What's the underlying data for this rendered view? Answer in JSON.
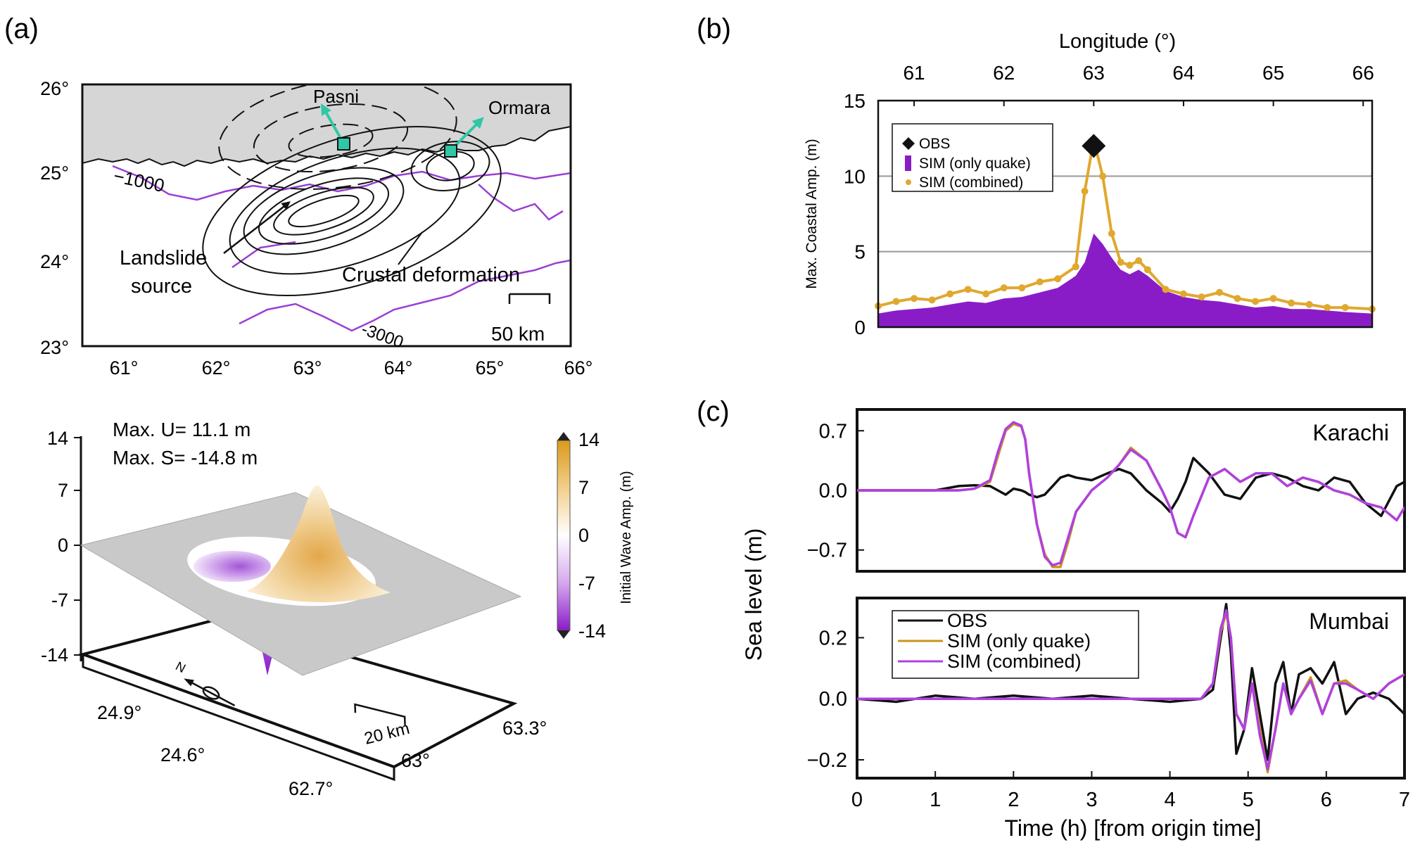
{
  "panels": {
    "a_label": "(a)",
    "b_label": "(b)",
    "c_label": "(c)"
  },
  "map_panel": {
    "lat_ticks": [
      "26°",
      "25°",
      "24°",
      "23°"
    ],
    "lon_ticks": [
      "61°",
      "62°",
      "63°",
      "64°",
      "65°",
      "66°"
    ],
    "places": [
      "Pasni",
      "Ormara"
    ],
    "contour_labels": [
      "1000",
      "-3000"
    ],
    "annotations": [
      "Landslide",
      "source",
      "Crustal deformation"
    ],
    "scale_bar": "50 km",
    "colors": {
      "land": "#d6d6d6",
      "bathymetry": "#9b3fd4",
      "station_marker": "#2fc7a6",
      "contour": "#111111"
    }
  },
  "surface_panel": {
    "max_uplift": "Max. U= 11.1 m",
    "max_subsidence": "Max. S= -14.8 m",
    "z_ticks": [
      "14",
      "7",
      "0",
      "-7",
      "-14"
    ],
    "lat_ticks": [
      "24.9°",
      "24.6°"
    ],
    "lon_ticks": [
      "62.7°",
      "63°",
      "63.3°"
    ],
    "scale_bar": "20 km",
    "north_label": "N",
    "colorbar": {
      "label": "Initial Wave Amp. (m)",
      "ticks": [
        "14",
        "7",
        "0",
        "-7",
        "-14"
      ],
      "colors": [
        "#d99a1a",
        "#f5d9a0",
        "#ffffff",
        "#c990e8",
        "#8a1cc8"
      ]
    }
  },
  "chart_data": [
    {
      "type": "area",
      "panel": "b",
      "xlabel": "Longitude (°)",
      "ylabel": "Max. Coastal Amp. (m)",
      "xlim": [
        60.6,
        66.1
      ],
      "ylim": [
        0,
        15
      ],
      "x_ticks": [
        61,
        62,
        63,
        64,
        65,
        66
      ],
      "y_ticks": [
        0,
        5,
        10,
        15
      ],
      "x_axis_position": "top",
      "grid": "horizontal",
      "legend_position": "top-left",
      "legend": [
        "OBS",
        "SIM (only quake)",
        "SIM (combined)"
      ],
      "observation": {
        "name": "OBS",
        "x": 63.0,
        "y": 12.0
      },
      "x": [
        60.6,
        60.8,
        61.0,
        61.2,
        61.4,
        61.6,
        61.8,
        62.0,
        62.2,
        62.4,
        62.6,
        62.8,
        62.9,
        63.0,
        63.1,
        63.2,
        63.3,
        63.4,
        63.5,
        63.6,
        63.8,
        64.0,
        64.2,
        64.4,
        64.6,
        64.8,
        65.0,
        65.2,
        65.4,
        65.6,
        65.8,
        66.1
      ],
      "series": [
        {
          "name": "SIM (only quake)",
          "color": "#8a1cc8",
          "values": [
            0.9,
            1.1,
            1.2,
            1.3,
            1.5,
            1.7,
            1.6,
            1.9,
            2.0,
            2.3,
            2.6,
            3.4,
            4.3,
            6.2,
            5.5,
            4.6,
            3.8,
            3.5,
            3.8,
            3.4,
            2.4,
            2.0,
            1.8,
            1.7,
            1.5,
            1.3,
            1.4,
            1.2,
            1.2,
            1.1,
            1.0,
            0.9
          ]
        },
        {
          "name": "SIM (combined)",
          "color": "#e0a82e",
          "values": [
            1.4,
            1.7,
            1.9,
            1.8,
            2.2,
            2.5,
            2.2,
            2.6,
            2.6,
            3.0,
            3.2,
            4.0,
            9.0,
            12.4,
            10.0,
            6.2,
            4.3,
            4.1,
            4.4,
            3.8,
            2.5,
            2.2,
            2.0,
            2.3,
            1.9,
            1.7,
            1.9,
            1.6,
            1.5,
            1.3,
            1.3,
            1.2
          ]
        }
      ]
    },
    {
      "type": "line",
      "panel": "c-top",
      "title": "Karachi",
      "ylabel": "Sea level (m)",
      "xlim": [
        0,
        7
      ],
      "ylim": [
        -0.95,
        0.95
      ],
      "y_ticks": [
        0.7,
        0.0,
        -0.7
      ],
      "y_tick_labels": [
        "0.7",
        "0.0",
        "−0.7"
      ],
      "x": [
        0,
        0.5,
        1.0,
        1.3,
        1.5,
        1.7,
        1.8,
        1.9,
        2.0,
        2.1,
        2.15,
        2.2,
        2.3,
        2.4,
        2.5,
        2.6,
        2.7,
        2.8,
        3.0,
        3.2,
        3.35,
        3.5,
        3.7,
        3.9,
        4.0,
        4.1,
        4.2,
        4.3,
        4.5,
        4.7,
        4.9,
        5.1,
        5.3,
        5.5,
        5.7,
        5.9,
        6.1,
        6.3,
        6.5,
        6.7,
        6.9,
        7.0
      ],
      "series": [
        {
          "name": "OBS",
          "color": "#111111",
          "values": [
            0,
            0,
            0,
            0.05,
            0.06,
            0.05,
            0.0,
            -0.05,
            0.02,
            0.0,
            -0.02,
            -0.05,
            -0.08,
            -0.05,
            0.05,
            0.15,
            0.18,
            0.15,
            0.12,
            0.2,
            0.25,
            0.2,
            0.0,
            -0.15,
            -0.25,
            -0.1,
            0.1,
            0.38,
            0.2,
            -0.05,
            -0.1,
            0.15,
            0.2,
            0.15,
            0.05,
            0.0,
            0.15,
            0.1,
            -0.15,
            -0.3,
            0.05,
            0.1
          ]
        },
        {
          "name": "SIM (only quake)",
          "color": "#c9961a",
          "values": [
            0,
            0,
            0,
            0,
            0.02,
            0.1,
            0.4,
            0.7,
            0.78,
            0.75,
            0.6,
            0.2,
            -0.4,
            -0.75,
            -0.9,
            -0.9,
            -0.6,
            -0.25,
            0.0,
            0.15,
            0.3,
            0.5,
            0.35,
            0.0,
            -0.2,
            -0.5,
            -0.55,
            -0.3,
            0.15,
            0.25,
            0.1,
            0.2,
            0.2,
            0.05,
            0.15,
            0.1,
            0.0,
            -0.05,
            -0.15,
            -0.2,
            -0.35,
            -0.2
          ]
        },
        {
          "name": "SIM (combined)",
          "color": "#b040e0",
          "values": [
            0,
            0,
            0,
            0,
            0.02,
            0.12,
            0.45,
            0.72,
            0.8,
            0.76,
            0.6,
            0.2,
            -0.4,
            -0.78,
            -0.88,
            -0.85,
            -0.55,
            -0.25,
            0.0,
            0.15,
            0.3,
            0.48,
            0.35,
            0.0,
            -0.2,
            -0.5,
            -0.55,
            -0.3,
            0.15,
            0.25,
            0.1,
            0.2,
            0.2,
            0.05,
            0.15,
            0.1,
            0.0,
            -0.05,
            -0.15,
            -0.2,
            -0.35,
            -0.2
          ]
        }
      ]
    },
    {
      "type": "line",
      "panel": "c-bottom",
      "title": "Mumbai",
      "xlabel": "Time (h) [from origin time]",
      "ylabel": "Sea level (m)",
      "xlim": [
        0,
        7
      ],
      "ylim": [
        -0.26,
        0.33
      ],
      "x_ticks": [
        0,
        1,
        2,
        3,
        4,
        5,
        6,
        7
      ],
      "y_ticks": [
        0.2,
        0.0,
        -0.2
      ],
      "y_tick_labels": [
        "0.2",
        "0.0",
        "−0.2"
      ],
      "legend": [
        "OBS",
        "SIM (only quake)",
        "SIM (combined)"
      ],
      "legend_position": "top-left",
      "x": [
        0,
        0.5,
        1.0,
        1.5,
        2.0,
        2.5,
        3.0,
        3.5,
        4.0,
        4.4,
        4.55,
        4.65,
        4.72,
        4.78,
        4.85,
        4.95,
        5.05,
        5.15,
        5.25,
        5.35,
        5.45,
        5.55,
        5.65,
        5.8,
        5.95,
        6.1,
        6.25,
        6.4,
        6.6,
        6.8,
        7.0
      ],
      "series": [
        {
          "name": "OBS",
          "color": "#111111",
          "values": [
            0,
            -0.01,
            0.01,
            0,
            0.01,
            0.0,
            0.01,
            0,
            -0.01,
            0.0,
            0.03,
            0.2,
            0.31,
            0.15,
            -0.18,
            -0.1,
            0.1,
            -0.05,
            -0.2,
            0.05,
            0.12,
            -0.05,
            0.08,
            0.1,
            0.05,
            0.12,
            -0.05,
            0.0,
            0.02,
            0.0,
            -0.05
          ]
        },
        {
          "name": "SIM (only quake)",
          "color": "#c9961a",
          "values": [
            0,
            0,
            0,
            0,
            0,
            0,
            0,
            0,
            0,
            0.0,
            0.05,
            0.22,
            0.28,
            0.2,
            -0.05,
            -0.1,
            0.05,
            -0.1,
            -0.24,
            -0.1,
            0.05,
            -0.05,
            0.0,
            0.07,
            -0.05,
            0.05,
            0.06,
            0.03,
            0.0,
            0.05,
            0.08
          ]
        },
        {
          "name": "SIM (combined)",
          "color": "#b040e0",
          "values": [
            0,
            0,
            0,
            0,
            0,
            0,
            0,
            0,
            0,
            0.0,
            0.05,
            0.23,
            0.29,
            0.2,
            -0.05,
            -0.1,
            0.05,
            -0.12,
            -0.23,
            -0.1,
            0.05,
            -0.05,
            0.0,
            0.06,
            -0.05,
            0.05,
            0.05,
            0.03,
            0.0,
            0.05,
            0.08
          ]
        }
      ]
    }
  ]
}
